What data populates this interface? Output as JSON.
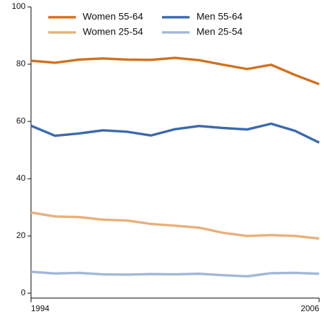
{
  "chart_data": {
    "type": "line",
    "x": [
      1994,
      1995,
      1996,
      1997,
      1998,
      1999,
      2000,
      2001,
      2002,
      2003,
      2004,
      2005,
      2006
    ],
    "xlim": [
      1994,
      2006
    ],
    "xticks": [
      1994,
      2006
    ],
    "ylim": [
      0,
      100
    ],
    "yticks": [
      0,
      20,
      40,
      60,
      80,
      100
    ],
    "series": [
      {
        "name": "Women 55-64",
        "color": "#d0711f",
        "values": [
          81.2,
          80.5,
          81.6,
          82,
          81.6,
          81.5,
          82.2,
          81.4,
          79.8,
          78.3,
          79.8,
          76.2,
          73
        ]
      },
      {
        "name": "Men 55-64",
        "color": "#3a6aad",
        "values": [
          58.5,
          55,
          55.8,
          56.9,
          56.4,
          55.1,
          57.3,
          58.4,
          57.7,
          57.2,
          59.2,
          56.7,
          52.6
        ]
      },
      {
        "name": "Women 25-54",
        "color": "#e8b07a",
        "values": [
          28.2,
          26.8,
          26.6,
          25.7,
          25.4,
          24.2,
          23.6,
          22.9,
          21.1,
          20,
          20.3,
          20,
          19.1
        ]
      },
      {
        "name": "Men 25-54",
        "color": "#a3b7d9",
        "values": [
          7.5,
          6.9,
          7.1,
          6.6,
          6.5,
          6.7,
          6.6,
          6.8,
          6.3,
          5.9,
          7,
          7.1,
          6.8
        ]
      }
    ]
  }
}
